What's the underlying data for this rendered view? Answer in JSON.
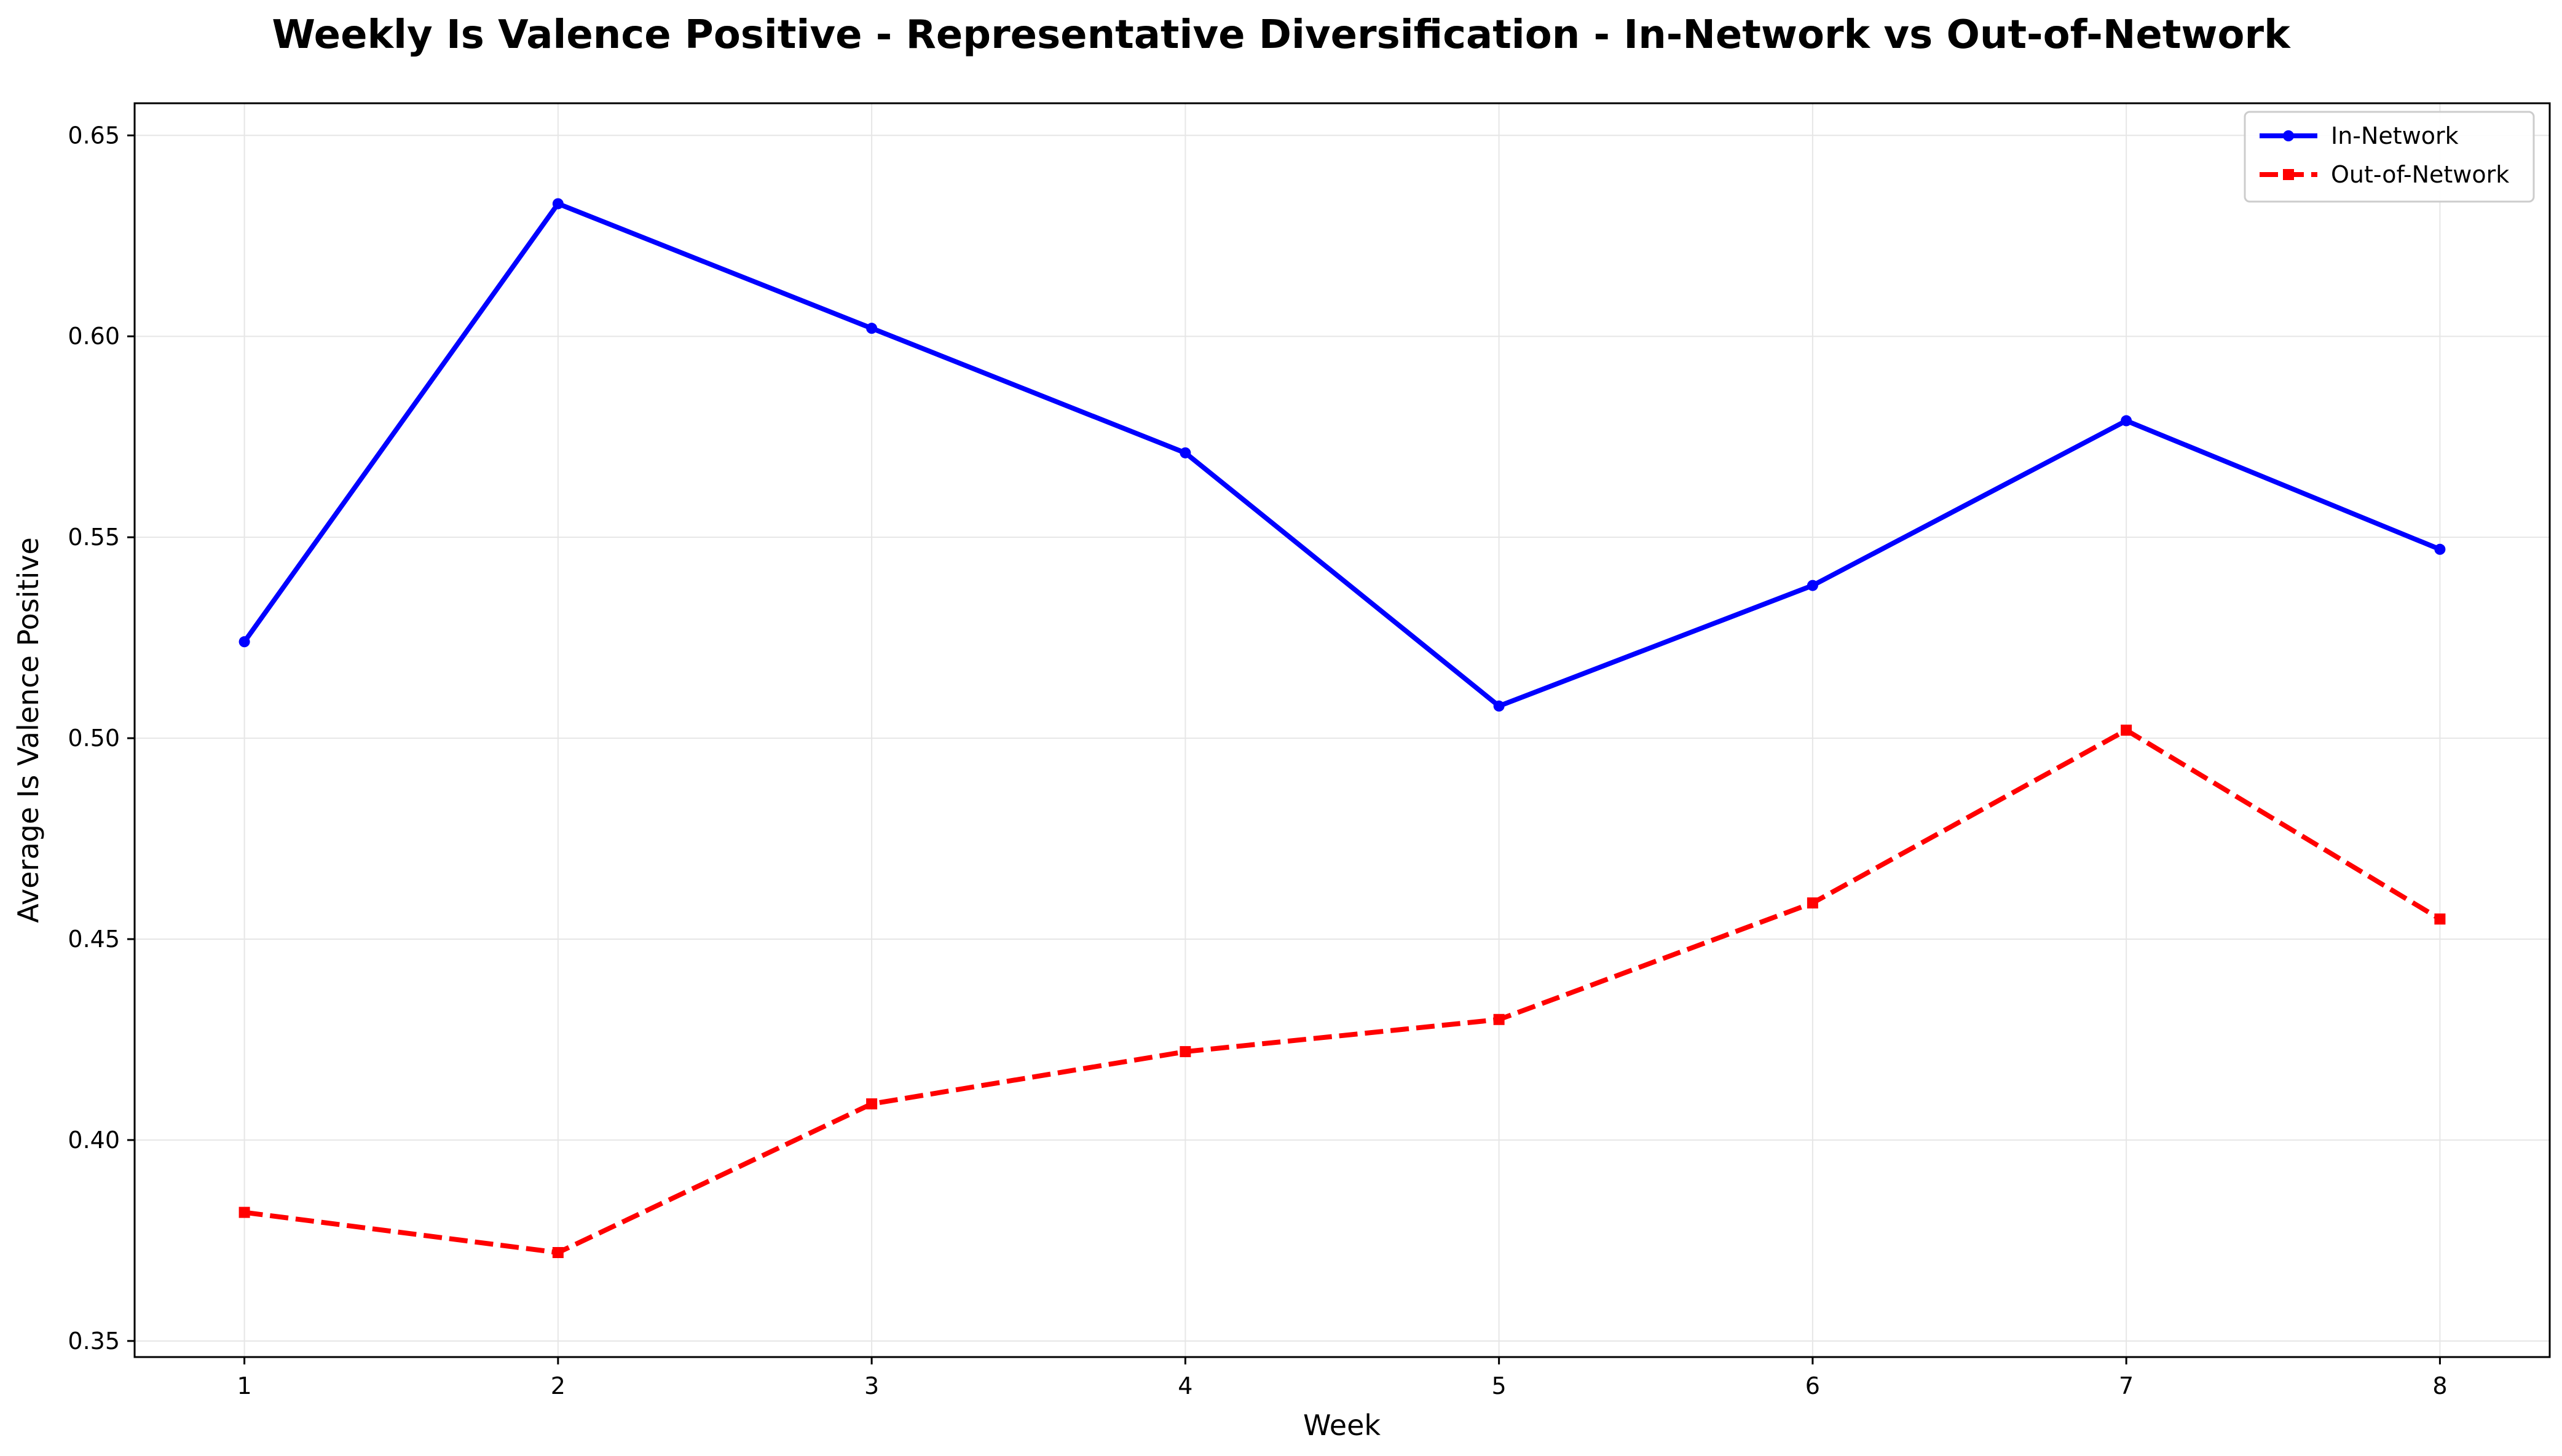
{
  "chart_data": {
    "type": "line",
    "title": "Weekly Is Valence Positive - Representative Diversification - In-Network vs Out-of-Network",
    "xlabel": "Week",
    "ylabel": "Average Is Valence Positive",
    "x": [
      1,
      2,
      3,
      4,
      5,
      6,
      7,
      8
    ],
    "xticks": [
      "1",
      "2",
      "3",
      "4",
      "5",
      "6",
      "7",
      "8"
    ],
    "xlim": [
      0.65,
      8.35
    ],
    "ylim": [
      0.346,
      0.658
    ],
    "yticks": [
      "0.35",
      "0.40",
      "0.45",
      "0.50",
      "0.55",
      "0.60",
      "0.65"
    ],
    "ytick_values": [
      0.35,
      0.4,
      0.45,
      0.5,
      0.55,
      0.6,
      0.65
    ],
    "grid": true,
    "legend_position": "top-right",
    "series": [
      {
        "name": "In-Network",
        "values": [
          0.524,
          0.633,
          0.602,
          0.571,
          0.508,
          0.538,
          0.579,
          0.547
        ],
        "color": "#0000ff",
        "line_style": "solid",
        "marker": "circle"
      },
      {
        "name": "Out-of-Network",
        "values": [
          0.382,
          0.372,
          0.409,
          0.422,
          0.43,
          0.459,
          0.502,
          0.455
        ],
        "color": "#ff0000",
        "line_style": "dashed",
        "marker": "square"
      }
    ]
  }
}
